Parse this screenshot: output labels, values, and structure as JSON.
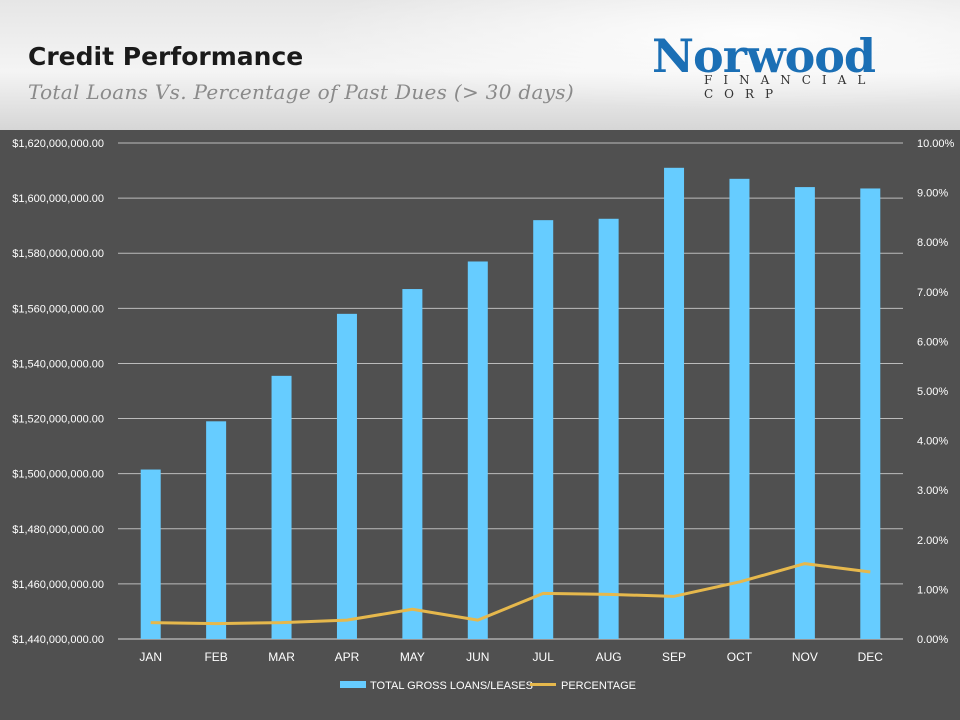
{
  "header": {
    "title": "Credit Performance",
    "subtitle": "Total Loans Vs. Percentage of Past Dues (> 30 days)",
    "logo_word": "Norwood",
    "logo_sub": "FINANCIAL CORP"
  },
  "colors": {
    "bar": "#66ccff",
    "line": "#e6b84c",
    "background": "#505050",
    "grid": "#bbbbbb"
  },
  "chart_data": {
    "type": "bar",
    "title": "",
    "xlabel": "",
    "ylabel": "",
    "categories": [
      "JAN",
      "FEB",
      "MAR",
      "APR",
      "MAY",
      "JUN",
      "JUL",
      "AUG",
      "SEP",
      "OCT",
      "NOV",
      "DEC"
    ],
    "series": [
      {
        "name": "TOTAL GROSS LOANS/LEASES",
        "type": "bar",
        "axis": "left",
        "values": [
          1501500000,
          1519000000,
          1535500000,
          1558000000,
          1567000000,
          1577000000,
          1592000000,
          1592500000,
          1611000000,
          1607000000,
          1604000000,
          1603500000
        ]
      },
      {
        "name": "PERCENTAGE",
        "type": "line",
        "axis": "right",
        "values": [
          0.33,
          0.31,
          0.33,
          0.38,
          0.6,
          0.38,
          0.92,
          0.9,
          0.86,
          1.15,
          1.52,
          1.35
        ]
      }
    ],
    "ylim": [
      1440000000,
      1620000000
    ],
    "y_ticks": [
      1440000000,
      1460000000,
      1480000000,
      1500000000,
      1520000000,
      1540000000,
      1560000000,
      1580000000,
      1600000000,
      1620000000
    ],
    "y_tick_labels": [
      "$1,440,000,000.00",
      "$1,460,000,000.00",
      "$1,480,000,000.00",
      "$1,500,000,000.00",
      "$1,520,000,000.00",
      "$1,540,000,000.00",
      "$1,560,000,000.00",
      "$1,580,000,000.00",
      "$1,600,000,000.00",
      "$1,620,000,000.00"
    ],
    "y2lim": [
      0,
      10
    ],
    "y2_ticks": [
      0,
      1,
      2,
      3,
      4,
      5,
      6,
      7,
      8,
      9,
      10
    ],
    "y2_tick_labels": [
      "0.00%",
      "1.00%",
      "2.00%",
      "3.00%",
      "4.00%",
      "5.00%",
      "6.00%",
      "7.00%",
      "8.00%",
      "9.00%",
      "10.00%"
    ],
    "grid": true,
    "legend_position": "bottom-center"
  }
}
